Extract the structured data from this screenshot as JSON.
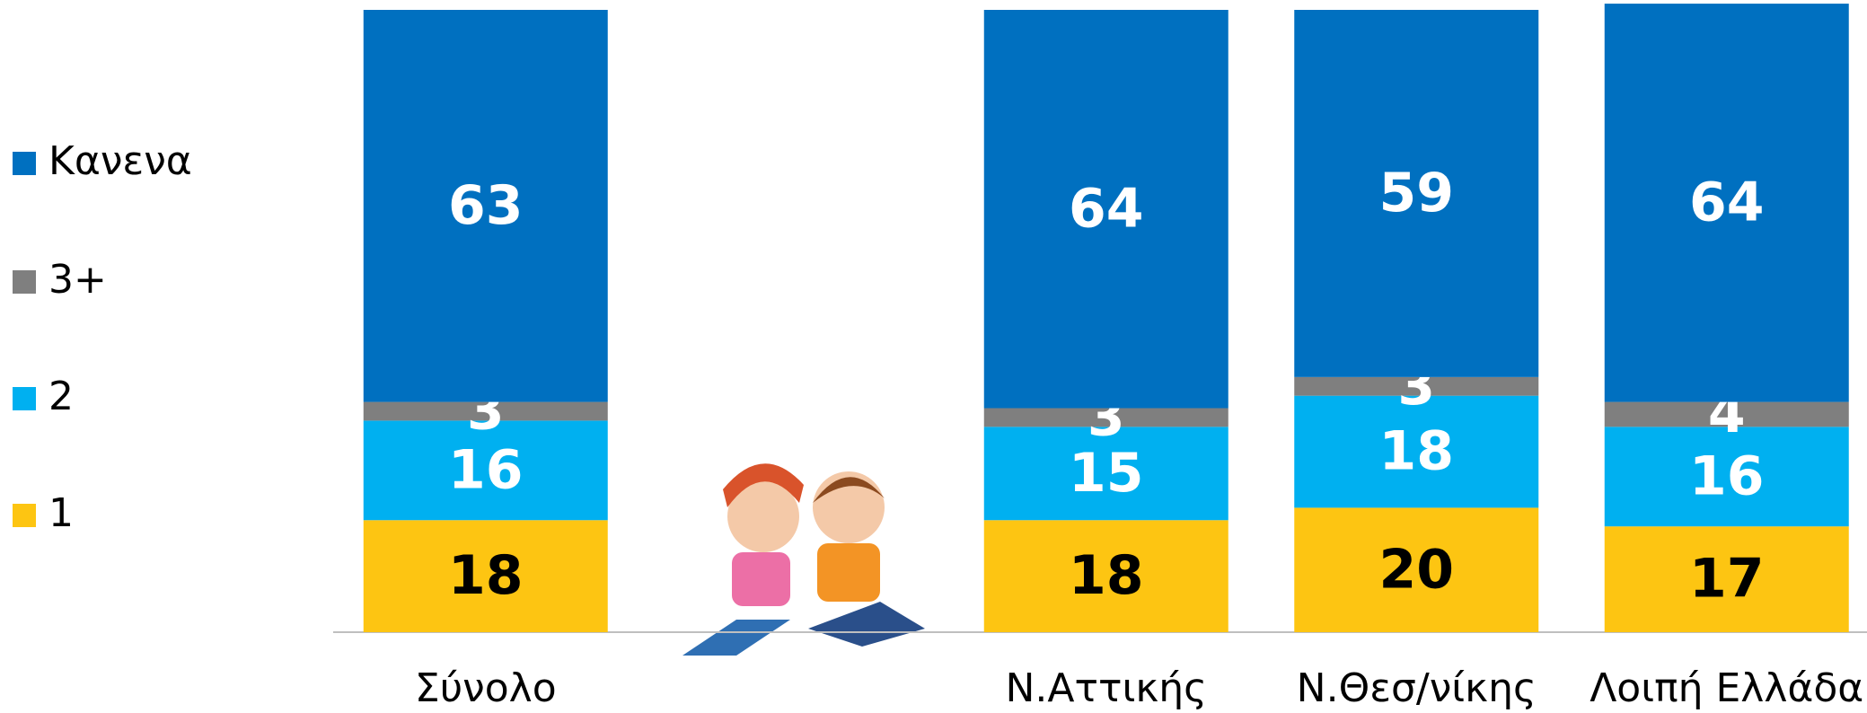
{
  "chart_data": {
    "type": "stacked-bar",
    "categories": [
      "Σύνολο",
      null,
      "Ν.Αττικής",
      "Ν.Θεσ/νίκης",
      "Λοιπή Ελλάδα"
    ],
    "series": [
      {
        "name": "1",
        "color": "#FDC512",
        "label_color": "#000000",
        "values": [
          18,
          null,
          18,
          20,
          17
        ]
      },
      {
        "name": "2",
        "color": "#00B0F0",
        "label_color": "#ffffff",
        "values": [
          16,
          null,
          15,
          18,
          16
        ]
      },
      {
        "name": "3+",
        "color": "#7F7F7F",
        "label_color": "#ffffff",
        "values": [
          3,
          null,
          3,
          3,
          4
        ]
      },
      {
        "name": "Κανενα",
        "color": "#0070C0",
        "label_color": "#ffffff",
        "values": [
          63,
          null,
          64,
          59,
          64
        ]
      }
    ],
    "ylim": [
      0,
      100
    ],
    "legend": "left"
  }
}
